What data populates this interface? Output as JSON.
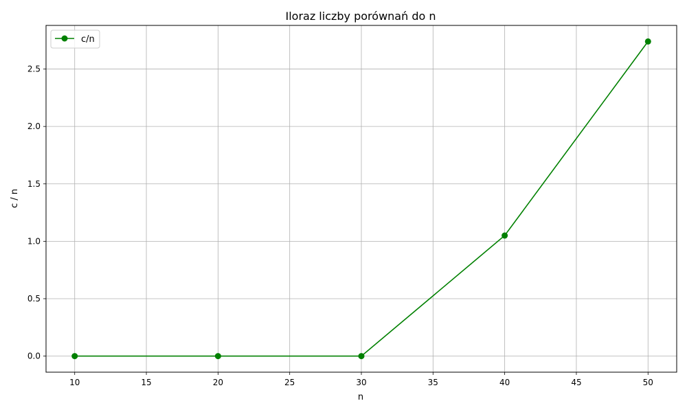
{
  "chart_data": {
    "type": "line",
    "title": "Iloraz liczby porównań do n",
    "xlabel": "n",
    "ylabel": "c / n",
    "x": [
      10,
      20,
      30,
      40,
      50
    ],
    "series": [
      {
        "name": "c/n",
        "values": [
          0.0,
          0.0,
          0.0,
          1.05,
          2.74
        ],
        "color": "#008000",
        "marker": "circle"
      }
    ],
    "xlim": [
      8,
      52
    ],
    "ylim": [
      -0.14,
      2.88
    ],
    "xticks": [
      10,
      15,
      20,
      25,
      30,
      35,
      40,
      45,
      50
    ],
    "xtick_labels": [
      "10",
      "15",
      "20",
      "25",
      "30",
      "35",
      "40",
      "45",
      "50"
    ],
    "yticks": [
      0.0,
      0.5,
      1.0,
      1.5,
      2.0,
      2.5
    ],
    "ytick_labels": [
      "0.0",
      "0.5",
      "1.0",
      "1.5",
      "2.0",
      "2.5"
    ],
    "grid": true,
    "legend": "top-left"
  }
}
